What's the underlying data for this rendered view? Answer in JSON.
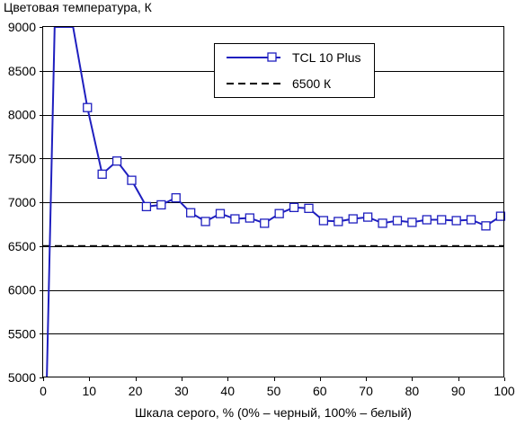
{
  "chart_data": {
    "type": "line",
    "title": "",
    "ylabel": "Цветовая температура, К",
    "xlabel": "Шкала серого, % (0% – черный, 100% – белый)",
    "xlim": [
      0,
      100
    ],
    "ylim": [
      5000,
      9000
    ],
    "xticks": [
      0,
      10,
      20,
      30,
      40,
      50,
      60,
      70,
      80,
      90,
      100
    ],
    "yticks": [
      5000,
      5500,
      6000,
      6500,
      7000,
      7500,
      8000,
      8500,
      9000
    ],
    "grid": "horizontal",
    "legend_position": "top-right",
    "series": [
      {
        "name": "TCL 10 Plus",
        "color": "#1f1fbf",
        "marker": "open-square",
        "line_points": {
          "x": [
            0.8,
            2.5,
            6.5,
            9.6
          ],
          "y": [
            5000,
            9000,
            9000,
            8080
          ]
        },
        "x": [
          9.6,
          12.8,
          16.0,
          19.2,
          22.4,
          25.6,
          28.8,
          32.0,
          35.2,
          38.4,
          41.6,
          44.8,
          48.0,
          51.2,
          54.4,
          57.6,
          60.8,
          64.0,
          67.2,
          70.4,
          73.6,
          76.8,
          80.0,
          83.2,
          86.4,
          89.6,
          92.8,
          96.0,
          99.2
        ],
        "y": [
          8080,
          7320,
          7470,
          7250,
          6950,
          6970,
          7050,
          6880,
          6780,
          6870,
          6810,
          6820,
          6760,
          6870,
          6940,
          6930,
          6790,
          6780,
          6810,
          6830,
          6760,
          6790,
          6770,
          6800,
          6800,
          6790,
          6800,
          6730,
          6840
        ]
      },
      {
        "name": "6500 К",
        "color": "#000000",
        "style": "dashed",
        "x": [
          0,
          100
        ],
        "y": [
          6500,
          6500
        ]
      }
    ]
  }
}
